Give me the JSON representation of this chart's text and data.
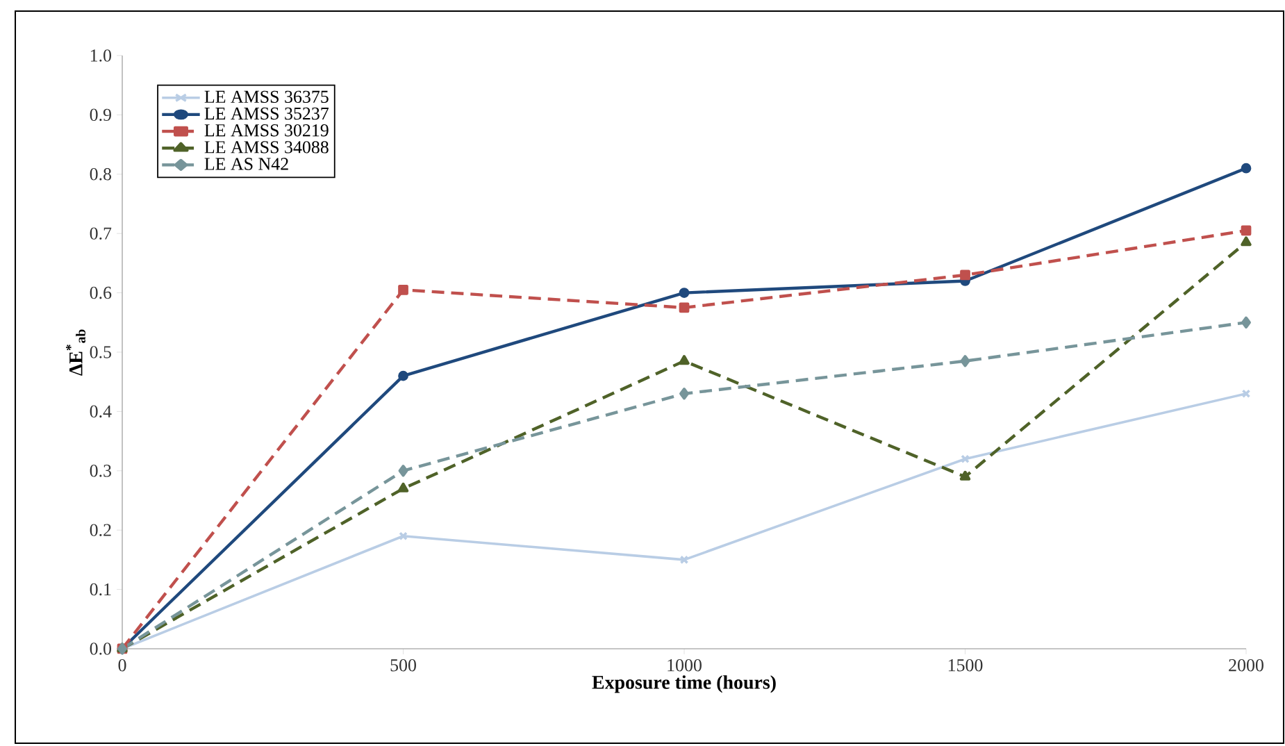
{
  "chart_data": {
    "type": "line",
    "xlabel": "Exposure time (hours)",
    "ylabel": "ΔE$^{*}$$_{ab}$",
    "x": [
      0,
      500,
      1000,
      1500,
      2000
    ],
    "xlim": [
      0,
      2000
    ],
    "xticks": [
      0,
      500,
      1000,
      1500,
      2000
    ],
    "ylim": [
      0,
      1.0
    ],
    "yticks": [
      {
        "value": 0,
        "label": "0.0"
      },
      0.1,
      0.2,
      0.3,
      0.4,
      0.5,
      0.6,
      0.7,
      0.8,
      0.9,
      {
        "value": 1.0,
        "label": "1.0"
      }
    ],
    "grid": false,
    "legend": "top left",
    "series": [
      {
        "name": "LE AMSS 36375",
        "color": "#b9cde5",
        "marker": "cross",
        "line_style": "solid",
        "values": [
          0,
          0.19,
          0.15,
          0.32,
          0.43
        ]
      },
      {
        "name": "LE AMSS 35237",
        "color": "#1f497d",
        "marker": "circle",
        "line_style": "solid",
        "values": [
          0,
          0.46,
          0.6,
          0.62,
          0.81
        ]
      },
      {
        "name": "LE AMSS 30219",
        "color": "#c0504d",
        "marker": "square",
        "line_style": "dashed",
        "values": [
          0,
          0.605,
          0.575,
          0.63,
          0.705
        ]
      },
      {
        "name": "LE AMSS 34088",
        "color": "#4f6228",
        "marker": "triangle",
        "line_style": "dashed",
        "values": [
          0,
          0.27,
          0.485,
          0.29,
          0.685
        ]
      },
      {
        "name": "LE AS N42",
        "color": "#77959a",
        "marker": "diamond",
        "line_style": "dashed",
        "values": [
          0,
          0.3,
          0.43,
          0.485,
          0.55
        ]
      }
    ]
  }
}
